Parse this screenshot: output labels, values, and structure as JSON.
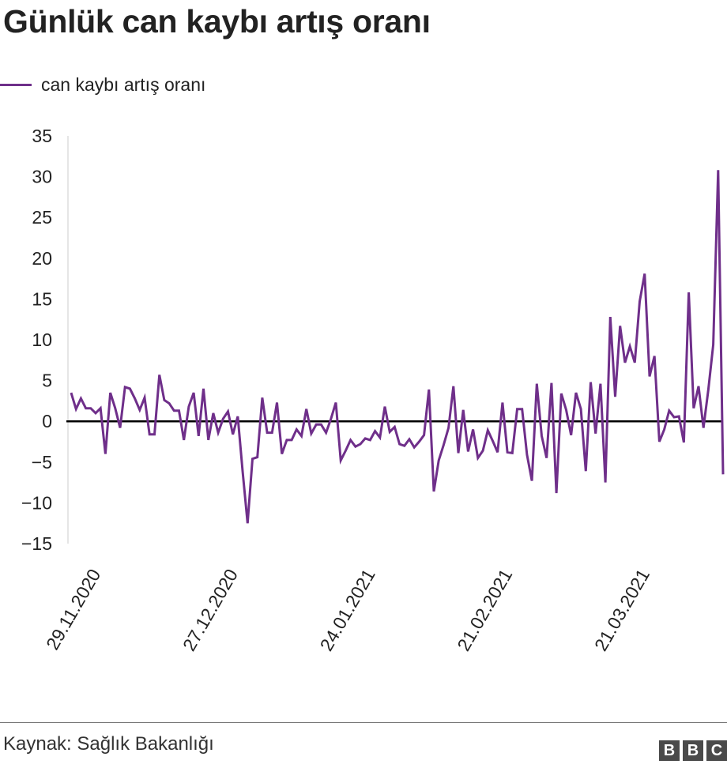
{
  "chart_data": {
    "type": "line",
    "title": "Günlük can kaybı artış oranı",
    "legend": "top-left",
    "series": [
      {
        "name": "can kaybı artış oranı",
        "color": "#6f2f8a",
        "values": [
          3.5,
          1.5,
          2.8,
          1.6,
          1.6,
          1.0,
          1.6,
          -4.0,
          3.5,
          1.6,
          -0.8,
          4.2,
          4.0,
          2.8,
          1.4,
          2.9,
          -1.6,
          -1.6,
          5.7,
          2.6,
          2.2,
          1.3,
          1.3,
          -2.3,
          1.8,
          3.5,
          -1.8,
          4.0,
          -2.3,
          1.0,
          -1.4,
          0.3,
          1.2,
          -1.6,
          0.6,
          -6.2,
          -12.5,
          -4.6,
          -4.4,
          2.9,
          -1.4,
          -1.4,
          2.3,
          -4.0,
          -2.3,
          -2.3,
          -1.0,
          -1.8,
          1.5,
          -1.5,
          -0.4,
          -0.4,
          -1.4,
          0.3,
          2.3,
          -4.8,
          -3.6,
          -2.3,
          -3.1,
          -2.8,
          -2.1,
          -2.3,
          -1.2,
          -2.0,
          1.8,
          -1.3,
          -0.7,
          -2.8,
          -3.0,
          -2.2,
          -3.2,
          -2.5,
          -1.7,
          3.9,
          -8.6,
          -4.8,
          -2.9,
          -0.8,
          4.3,
          -3.9,
          1.4,
          -3.7,
          -1.0,
          -4.5,
          -3.6,
          -1.1,
          -2.4,
          -3.8,
          2.3,
          -3.8,
          -3.9,
          1.5,
          1.5,
          -4.1,
          -7.3,
          4.6,
          -1.8,
          -4.5,
          4.7,
          -8.8,
          3.4,
          1.4,
          -1.7,
          3.5,
          1.5,
          -6.1,
          4.8,
          -1.5,
          4.6,
          -7.5,
          12.8,
          3.0,
          11.7,
          7.2,
          9.2,
          7.2,
          14.7,
          18.1,
          5.5,
          8.0,
          -2.5,
          -1.0,
          1.3,
          0.5,
          0.6,
          -2.6,
          15.8,
          1.6,
          4.3,
          -0.8,
          3.9,
          9.4,
          30.8,
          -6.5
        ]
      }
    ],
    "x_tick_labels": [
      "29.11.2020",
      "27.12.2020",
      "24.01.2021",
      "21.02.2021",
      "21.03.2021"
    ],
    "x_tick_indices": [
      0,
      28,
      56,
      84,
      112
    ],
    "y_ticks": [
      35,
      30,
      25,
      20,
      15,
      10,
      5,
      0,
      -5,
      -10,
      -15
    ],
    "ylim": [
      -15,
      35
    ],
    "grid": false,
    "zero_line": true
  },
  "footer": {
    "source": "Kaynak: Sağlık Bakanlığı",
    "logo_letters": [
      "B",
      "B",
      "C"
    ]
  }
}
